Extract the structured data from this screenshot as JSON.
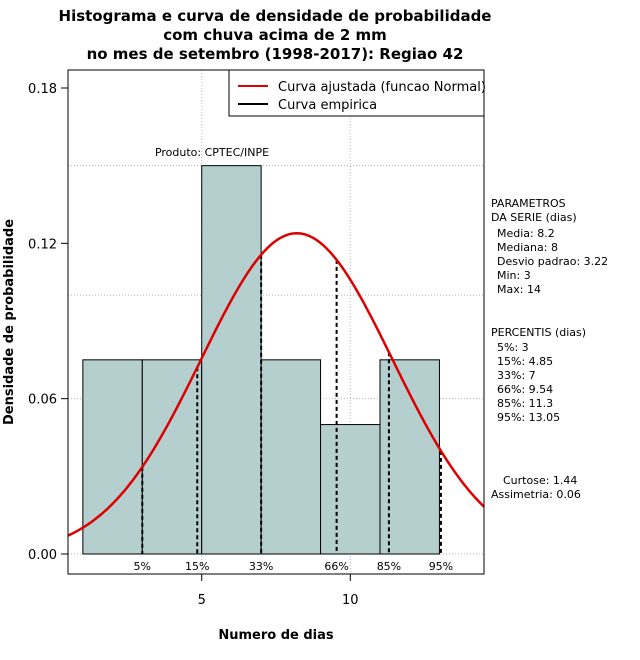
{
  "chart_data": {
    "type": "bar",
    "title_lines": [
      "Histograma e curva de densidade de probabilidade",
      "com chuva acima de 2 mm",
      "no mes de setembro (1998-2017): Regiao 42"
    ],
    "xlabel": "Numero de dias",
    "ylabel": "Densidade de probabilidade",
    "xlim": [
      0.5,
      14.5
    ],
    "ylim": [
      0,
      0.18
    ],
    "x_ticks": [
      5,
      10
    ],
    "y_ticks": [
      0.0,
      0.06,
      0.12,
      0.18
    ],
    "y_tick_labels": [
      "0.00",
      "0.06",
      "0.12",
      "0.18"
    ],
    "grid_x": [
      5,
      10
    ],
    "grid_y": [
      0.06,
      0.1,
      0.15
    ],
    "bins": [
      {
        "x0": 1,
        "x1": 3,
        "density": 0.075
      },
      {
        "x0": 3,
        "x1": 5,
        "density": 0.075
      },
      {
        "x0": 5,
        "x1": 7,
        "density": 0.15
      },
      {
        "x0": 7,
        "x1": 9,
        "density": 0.075
      },
      {
        "x0": 9,
        "x1": 11,
        "density": 0.05
      },
      {
        "x0": 11,
        "x1": 13,
        "density": 0.075
      }
    ],
    "bar_color": "#b5cece",
    "normal_curve": {
      "name": "Curva ajustada (funcao Normal)",
      "mean": 8.2,
      "sd": 3.22,
      "color": "#dd0000"
    },
    "empirical_name": "Curva empirica",
    "percentile_lines": [
      {
        "label": "5%",
        "value": 3
      },
      {
        "label": "15%",
        "value": 4.85
      },
      {
        "label": "33%",
        "value": 7
      },
      {
        "label": "66%",
        "value": 9.54
      },
      {
        "label": "85%",
        "value": 11.3
      },
      {
        "label": "95%",
        "value": 13.05
      }
    ],
    "legend_position": "top-right",
    "product_label": "Produto: CPTEC/INPE",
    "parameters_title": [
      "PARAMETROS",
      "DA SERIE (dias)"
    ],
    "parameters": [
      "Media: 8.2",
      "Mediana: 8",
      "Desvio padrao: 3.22",
      "Min: 3",
      "Max: 14"
    ],
    "percentiles_title": "PERCENTIS (dias)",
    "percentiles": [
      "5%: 3",
      "15%: 4.85",
      "33%: 7",
      "66%: 9.54",
      "85%: 11.3",
      "95%: 13.05"
    ],
    "shape_stats": [
      "Curtose: 1.44",
      "Assimetria: 0.06"
    ]
  }
}
